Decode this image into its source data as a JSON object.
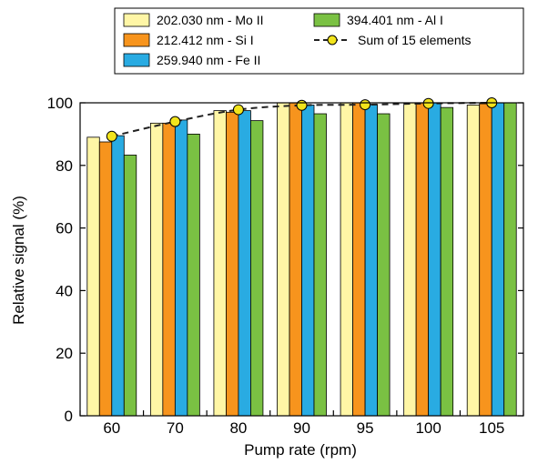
{
  "colors": {
    "mo": "#FFF6A6",
    "si": "#F7941D",
    "fe": "#29ABE2",
    "al": "#7AC143",
    "sum_line": "#222222",
    "sum_marker": "#F2E41C"
  },
  "chart_data": {
    "type": "bar",
    "title": "",
    "xlabel": "Pump rate (rpm)",
    "ylabel": "Relative signal (%)",
    "ylim": [
      0,
      100
    ],
    "yticks": [
      0,
      20,
      40,
      60,
      80,
      100
    ],
    "categories": [
      "60",
      "70",
      "80",
      "90",
      "95",
      "100",
      "105"
    ],
    "grid": false,
    "legend_position": "top",
    "series": [
      {
        "name": "202.030 nm - Mo II",
        "color_key": "mo",
        "values": [
          89,
          93.5,
          97.5,
          100,
          100,
          100,
          99.3
        ]
      },
      {
        "name": "212.412 nm - Si I",
        "color_key": "si",
        "values": [
          87.5,
          93.5,
          97,
          100,
          100,
          100,
          99.7
        ]
      },
      {
        "name": "259.940 nm - Fe II",
        "color_key": "fe",
        "values": [
          89.5,
          94.5,
          97.5,
          99.3,
          99.5,
          100,
          100
        ]
      },
      {
        "name": "394.401 nm - Al I",
        "color_key": "al",
        "values": [
          83.3,
          90,
          94.3,
          96.5,
          96.5,
          98.5,
          100
        ]
      }
    ],
    "line_series": {
      "name": "Sum of 15 elements",
      "style": "dashed",
      "values": [
        89.3,
        94,
        97.8,
        99.2,
        99.4,
        99.8,
        100
      ]
    }
  }
}
